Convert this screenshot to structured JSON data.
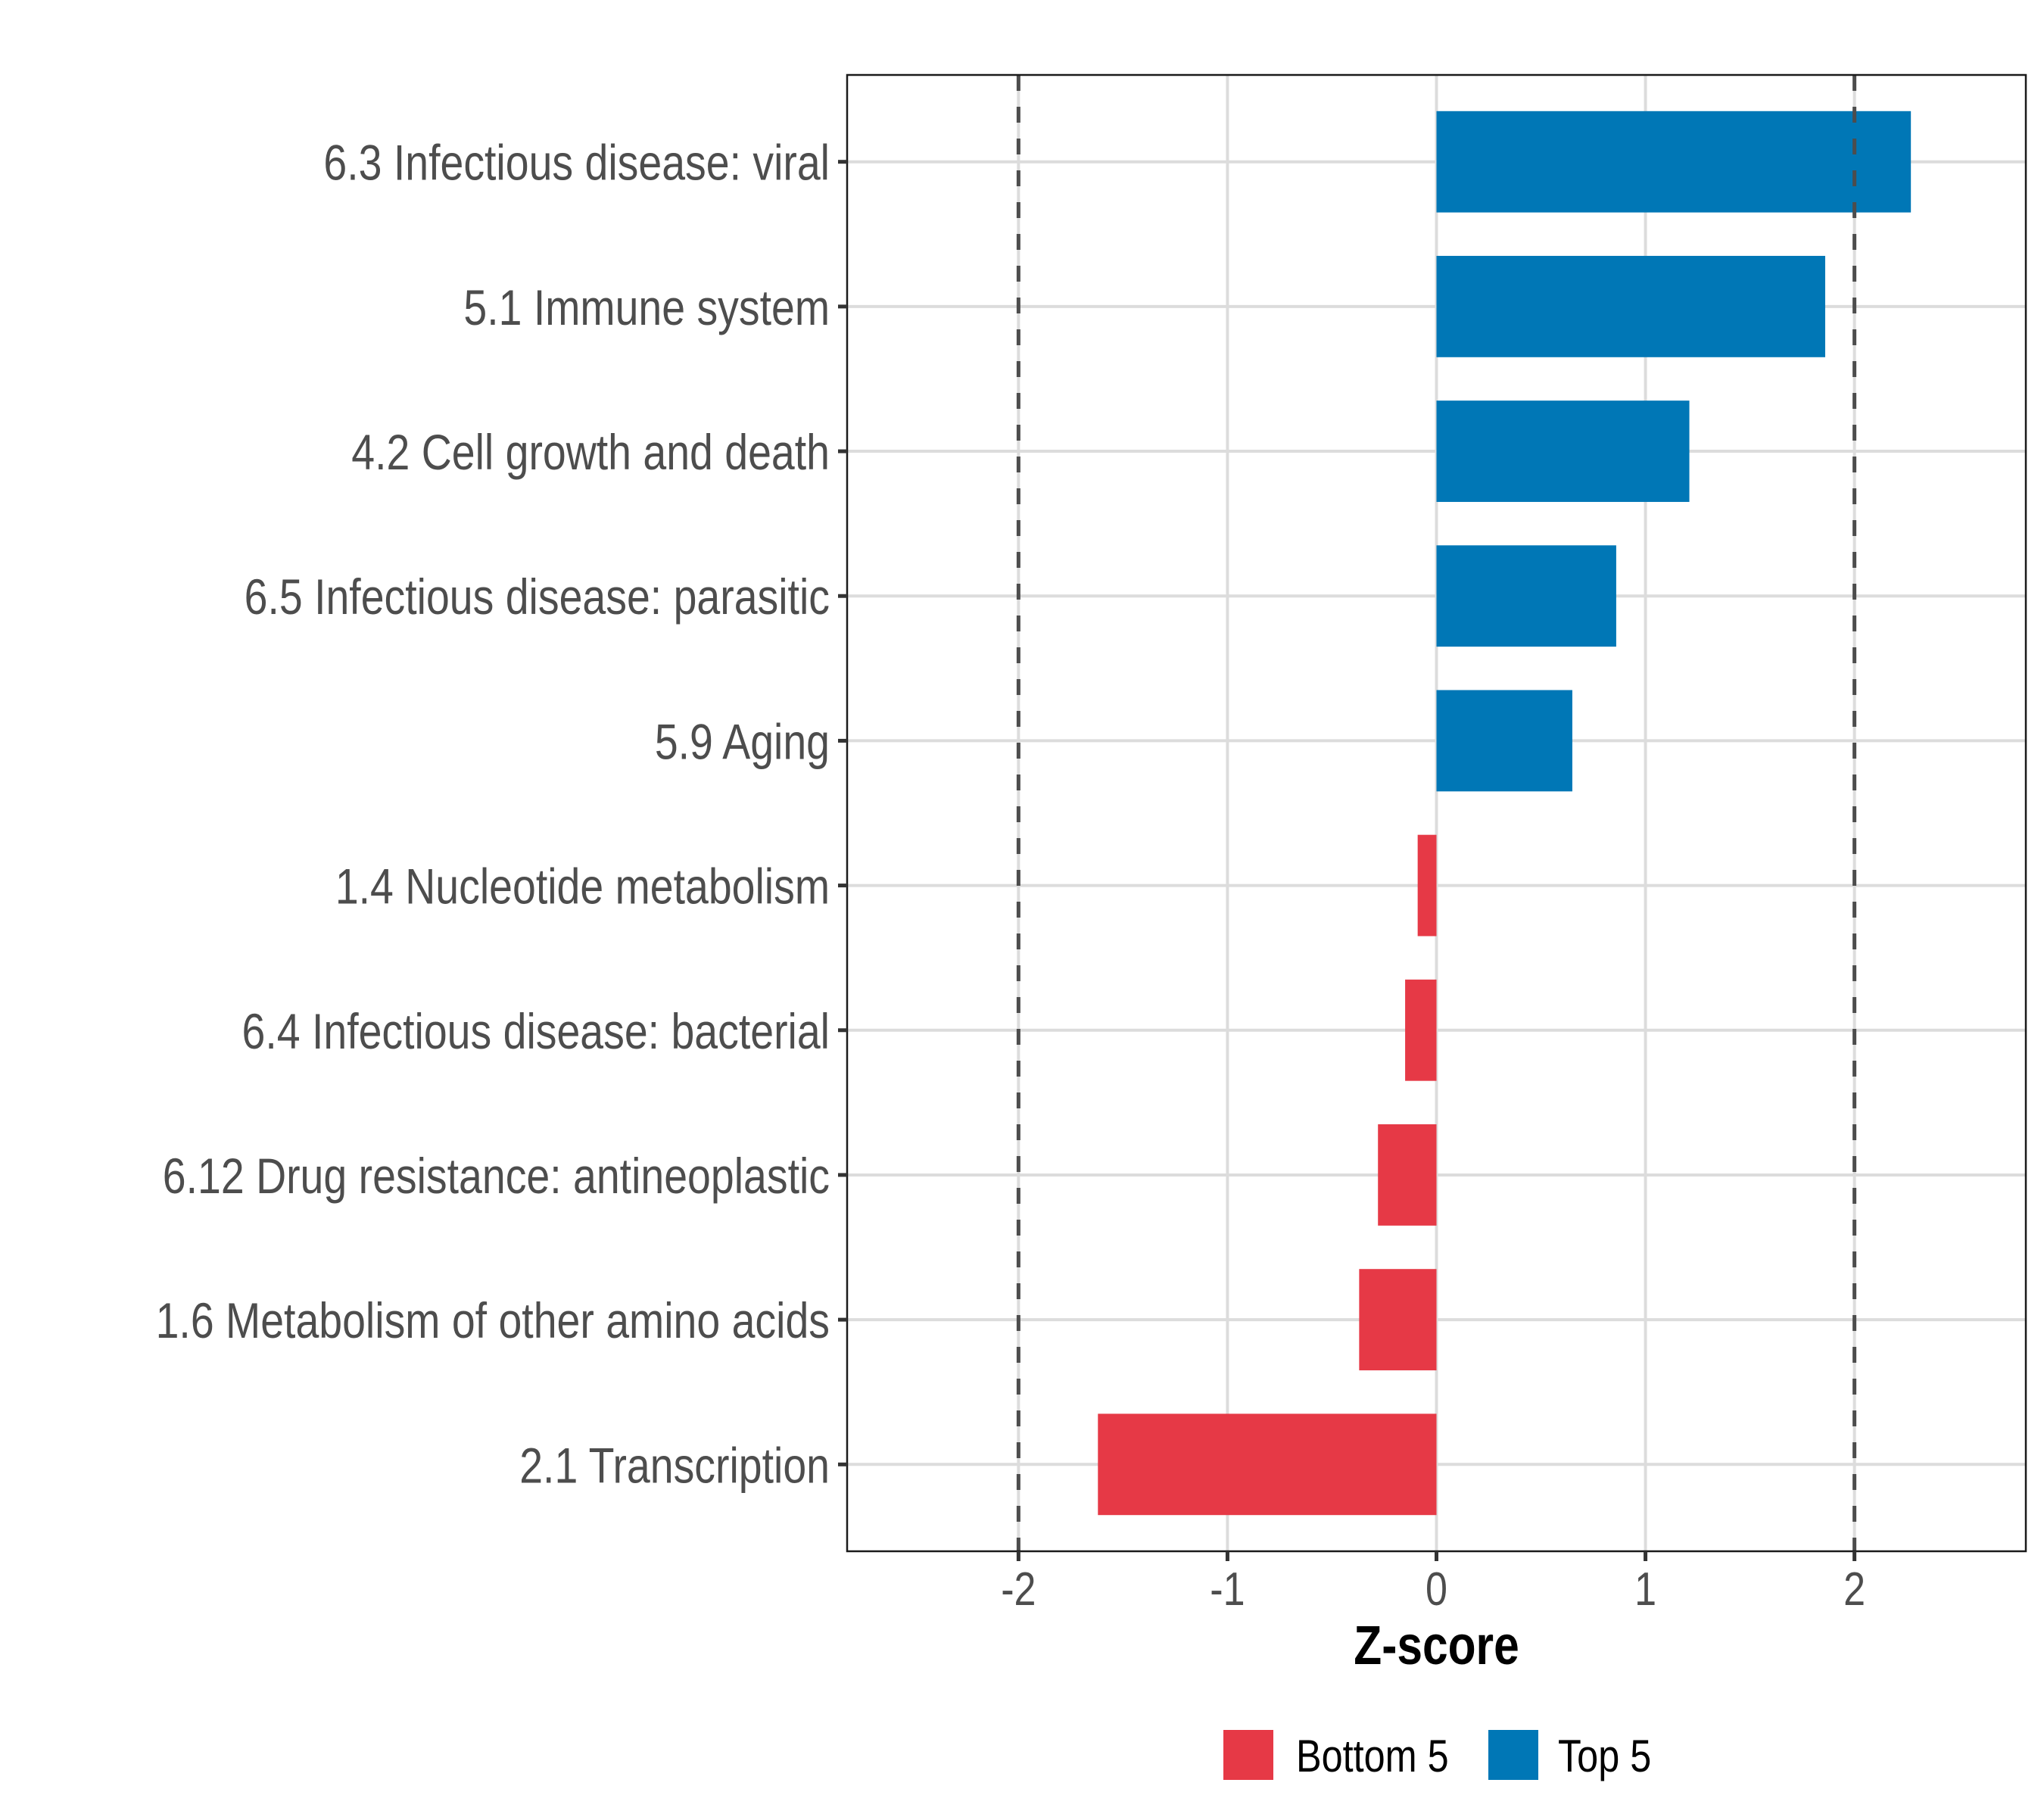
{
  "chart_data": {
    "type": "bar",
    "orientation": "horizontal",
    "title": "",
    "xlabel": "Z-score",
    "ylabel": "",
    "xlim": [
      -2.82,
      2.82
    ],
    "xticks": [
      -2,
      -1,
      0,
      1,
      2
    ],
    "xtick_labels": [
      "-2",
      "-1",
      "0",
      "1",
      "2"
    ],
    "reference_lines": [
      {
        "x": -2,
        "style": "dashed",
        "color": "#4d4d4d"
      },
      {
        "x": 2,
        "style": "dashed",
        "color": "#4d4d4d"
      }
    ],
    "grid": true,
    "categories": [
      "6.3 Infectious disease: viral",
      "5.1 Immune system",
      "4.2 Cell growth and death",
      "6.5 Infectious disease: parasitic",
      "5.9 Aging",
      "1.4 Nucleotide metabolism",
      "6.4 Infectious disease: bacterial",
      "6.12 Drug resistance: antineoplastic",
      "1.6 Metabolism of other amino acids",
      "2.1 Transcription"
    ],
    "values": [
      2.27,
      1.86,
      1.21,
      0.86,
      0.65,
      -0.09,
      -0.15,
      -0.28,
      -0.37,
      -1.62
    ],
    "groups": [
      "Top 5",
      "Top 5",
      "Top 5",
      "Top 5",
      "Top 5",
      "Bottom 5",
      "Bottom 5",
      "Bottom 5",
      "Bottom 5",
      "Bottom 5"
    ],
    "legend": {
      "position": "bottom",
      "entries": [
        {
          "label": "Bottom 5",
          "color": "#E63946"
        },
        {
          "label": "Top 5",
          "color": "#0077B6"
        }
      ]
    },
    "colors": {
      "Bottom 5": "#E63946",
      "Top 5": "#0077B6"
    }
  }
}
